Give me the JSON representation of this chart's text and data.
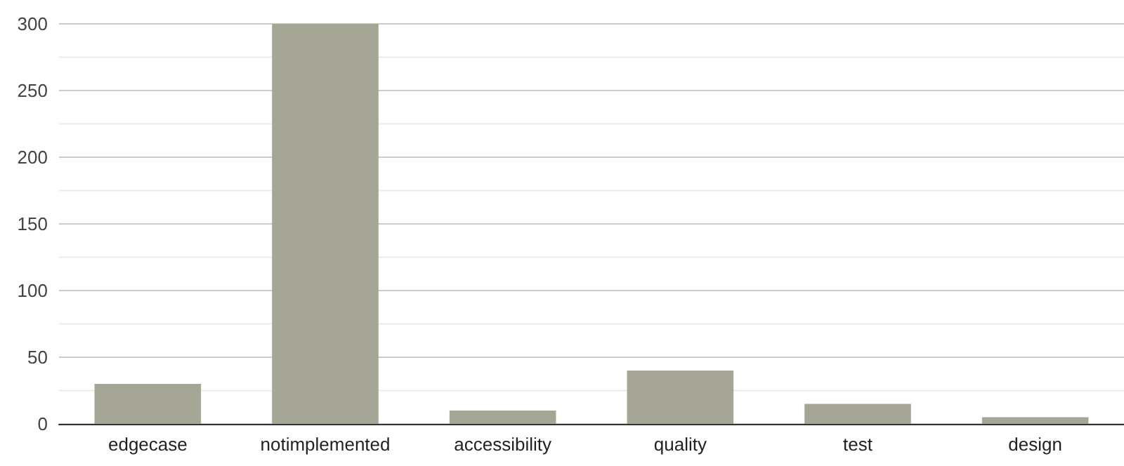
{
  "chart_data": {
    "type": "bar",
    "categories": [
      "edgecase",
      "notimplemented",
      "accessibility",
      "quality",
      "test",
      "design"
    ],
    "values": [
      30,
      300,
      10,
      40,
      15,
      5
    ],
    "color": "#a5a696",
    "ylim": [
      0,
      300
    ],
    "yticks": [
      0,
      {
        "value": 25,
        "label": null
      },
      50,
      {
        "value": 75,
        "label": null
      },
      100,
      {
        "value": 125,
        "label": null
      },
      150,
      {
        "value": 175,
        "label": null
      },
      200,
      {
        "value": 225,
        "label": null
      },
      250,
      {
        "value": 275,
        "label": null
      },
      300
    ],
    "grid": "y"
  }
}
